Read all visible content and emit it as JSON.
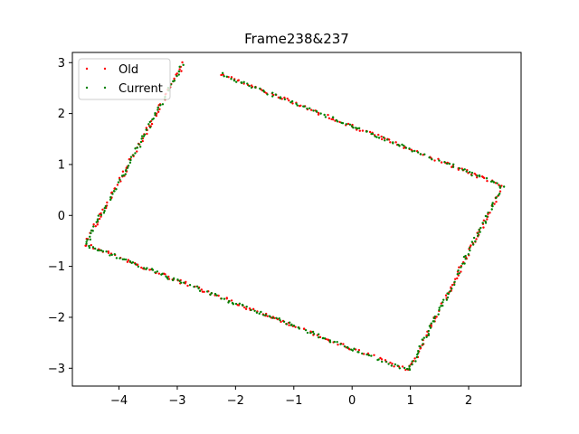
{
  "chart_data": {
    "type": "scatter",
    "title": "Frame238&237",
    "xlabel": "",
    "ylabel": "",
    "xlim": [
      -4.8,
      2.9
    ],
    "ylim": [
      -3.35,
      3.2
    ],
    "xticks": [
      -4,
      -3,
      -2,
      -1,
      0,
      1,
      2
    ],
    "yticks": [
      -3,
      -2,
      -1,
      0,
      1,
      2,
      3
    ],
    "grid": false,
    "legend_position": "upper-left",
    "series": [
      {
        "name": "Old",
        "color": "#ff0000",
        "points": []
      },
      {
        "name": "Current",
        "color": "#008000",
        "points": []
      }
    ],
    "outline_vertices": [
      {
        "x": -2.25,
        "y": 2.78
      },
      {
        "x": 2.58,
        "y": 0.58
      },
      {
        "x": 0.97,
        "y": -3.05
      },
      {
        "x": -4.58,
        "y": -0.57
      },
      {
        "x": -2.88,
        "y": 3.02
      }
    ]
  }
}
